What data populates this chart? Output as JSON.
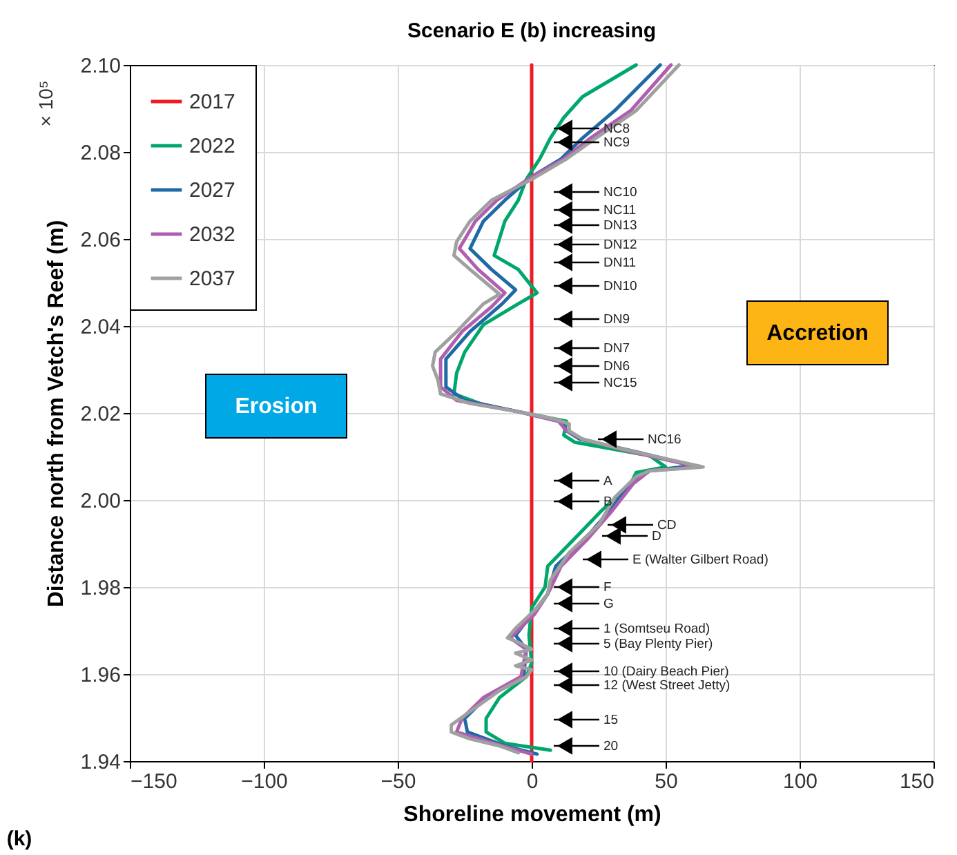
{
  "chart_data": {
    "type": "line",
    "title": "Scenario E (b) increasing",
    "xlabel": "Shoreline movement (m)",
    "ylabel": "Distance north from Vetch's Reef (m)",
    "xlim": [
      -150,
      150
    ],
    "xticks": [
      -150,
      -100,
      -50,
      0,
      50,
      100,
      150
    ],
    "ylim": [
      1.94,
      2.1
    ],
    "yticks": [
      1.94,
      1.96,
      1.98,
      {
        "value": 2.0,
        "label": "2.00"
      },
      2.02,
      2.04,
      2.06,
      2.08,
      {
        "value": 2.1,
        "label": "2.10"
      }
    ],
    "grid": true,
    "legend": "top left",
    "line_style": "solid",
    "marker": "none",
    "series": [
      {
        "name": "2017",
        "color": "#ed1c24",
        "x": [
          0,
          0
        ],
        "values": [
          1.94,
          2.1
        ]
      },
      {
        "name": "2022",
        "color": "#00a76b",
        "x": [
          39,
          19,
          12,
          7,
          3,
          -2,
          -5,
          -10,
          -14,
          -5,
          2,
          -5,
          -18,
          -25,
          -28,
          -29,
          -18,
          0,
          13,
          12,
          16,
          44,
          50,
          39,
          37,
          26,
          16,
          6,
          5,
          0,
          -1,
          0,
          -2,
          -12,
          -17,
          -17,
          -10,
          7
        ],
        "values": [
          2.1,
          2.0927,
          2.0879,
          2.0832,
          2.0784,
          2.0737,
          2.0689,
          2.0641,
          2.0562,
          2.053,
          2.0476,
          2.0451,
          2.0403,
          2.034,
          2.0292,
          2.0244,
          2.0219,
          2.0197,
          2.0181,
          2.0149,
          2.0133,
          2.0102,
          2.0076,
          2.0063,
          2.0038,
          1.9975,
          1.9911,
          1.9848,
          1.98,
          1.9752,
          1.9689,
          1.9625,
          1.9594,
          1.9546,
          1.9498,
          1.9467,
          1.9441,
          1.9425
        ]
      },
      {
        "name": "2027",
        "color": "#1f6aa5",
        "x": [
          48,
          31,
          19,
          11,
          0,
          -10,
          -18,
          -23,
          -15,
          -6,
          -11,
          -23,
          -32,
          -32,
          -25,
          -5,
          11,
          13,
          18,
          39,
          60,
          44,
          37,
          29,
          20,
          9,
          6,
          0,
          -6,
          -2,
          -3,
          -17,
          -25,
          -24,
          -10,
          2
        ],
        "values": [
          2.1,
          2.0895,
          2.0832,
          2.0784,
          2.0743,
          2.0689,
          2.0641,
          2.0578,
          2.053,
          2.0483,
          2.0451,
          2.0387,
          2.0324,
          2.026,
          2.0229,
          2.0203,
          2.0181,
          2.0159,
          2.014,
          2.0111,
          2.0079,
          2.0067,
          2.0038,
          1.9975,
          1.9911,
          1.9848,
          1.9784,
          1.9737,
          1.9689,
          1.9657,
          1.9594,
          1.9546,
          1.9498,
          1.9467,
          1.9435,
          1.9416
        ]
      },
      {
        "name": "2032",
        "color": "#b05fb0",
        "x": [
          52,
          37,
          22,
          12,
          0,
          -13,
          -21,
          -27,
          -20,
          -10,
          -15,
          -26,
          -34,
          -34,
          -28,
          -5,
          10,
          13,
          19,
          37,
          62,
          44,
          38,
          30,
          21,
          11,
          6,
          1,
          -8,
          -2,
          -4,
          -18,
          -26,
          -28,
          -11,
          0
        ],
        "values": [
          2.1,
          2.0895,
          2.0832,
          2.0784,
          2.0743,
          2.0689,
          2.0641,
          2.0578,
          2.053,
          2.0476,
          2.0444,
          2.0387,
          2.0324,
          2.026,
          2.0229,
          2.0203,
          2.0181,
          2.0159,
          2.014,
          2.0111,
          2.0076,
          2.0067,
          2.0038,
          1.9975,
          1.9911,
          1.9848,
          1.9784,
          1.9737,
          1.9683,
          1.9657,
          1.9594,
          1.9546,
          1.9498,
          1.9467,
          1.9435,
          1.9416
        ]
      },
      {
        "name": "2037",
        "color": "#a0a0a0",
        "x": [
          55,
          39,
          24,
          13,
          0,
          -15,
          -23,
          -28,
          -29,
          -23,
          -12,
          -18,
          -28,
          -36,
          -37,
          -35,
          -34,
          -23,
          -5,
          8,
          14,
          14,
          19,
          34,
          50,
          64,
          44,
          39,
          31,
          25,
          14,
          7,
          6,
          2,
          -6,
          -9,
          -5,
          0,
          -6,
          0,
          -6,
          0,
          -2,
          -12,
          -23,
          -30,
          -30,
          -23,
          -12,
          -5
        ],
        "values": [
          2.1,
          2.0895,
          2.0832,
          2.0784,
          2.0737,
          2.0689,
          2.0641,
          2.0594,
          2.0562,
          2.053,
          2.0473,
          2.0451,
          2.0387,
          2.034,
          2.0308,
          2.0276,
          2.0244,
          2.0222,
          2.0203,
          2.0187,
          2.0175,
          2.0159,
          2.014,
          2.0117,
          2.0095,
          2.0076,
          2.0067,
          2.0054,
          2.0006,
          1.9943,
          1.9879,
          1.9816,
          1.9784,
          1.9752,
          1.9705,
          1.9683,
          1.9673,
          1.9657,
          1.9648,
          1.9632,
          1.9619,
          1.961,
          1.9594,
          1.9562,
          1.9514,
          1.9483,
          1.9467,
          1.9451,
          1.9435,
          1.9419
        ]
      }
    ],
    "annotations": [
      "× 10⁵",
      "Erosion",
      "Accretion",
      "(k)",
      "NC8",
      "NC9",
      "NC10",
      "NC11",
      "DN13",
      "DN12",
      "DN11",
      "DN10",
      "DN9",
      "DN7",
      "DN6",
      "NC15",
      "NC16",
      "A",
      "B",
      "CD",
      "D",
      "E (Walter Gilbert Road)",
      "F",
      "G",
      "1 (Somtseu Road)",
      "5 (Bay Plenty Pier)",
      "10 (Dairy Beach Pier)",
      "12 (West Street Jetty)",
      "15",
      "20"
    ]
  }
}
